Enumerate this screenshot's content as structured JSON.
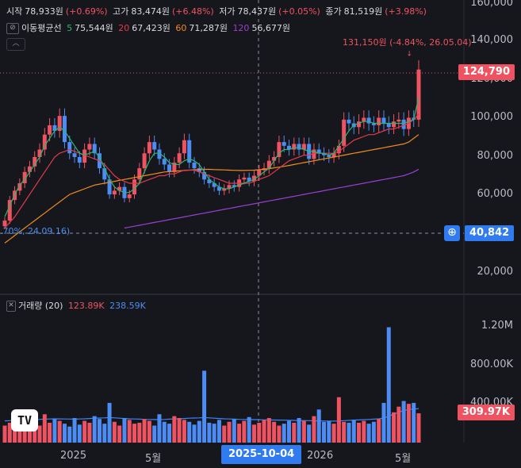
{
  "header": {
    "open_label": "시작",
    "open_value": "78,933원",
    "open_change": "(+0.69%)",
    "high_label": "고가",
    "high_value": "83,474원",
    "high_change": "(+6.48%)",
    "low_label": "저가",
    "low_value": "78,437원",
    "low_change": "(+0.05%)",
    "close_label": "종가",
    "close_value": "81,519원",
    "close_change": "(+3.98%)"
  },
  "ma_legend": {
    "label": "이동평균선",
    "items": [
      {
        "period": "5",
        "value": "75,544원",
        "color": "#2bb673"
      },
      {
        "period": "20",
        "value": "67,423원",
        "color": "#e23b4a"
      },
      {
        "period": "60",
        "value": "71,287원",
        "color": "#f08c1e"
      },
      {
        "period": "120",
        "value": "56,677원",
        "color": "#9b3fd0"
      }
    ]
  },
  "volume_legend": {
    "label": "거래량 (20)",
    "val1": "123.89K",
    "val2": "238.59K"
  },
  "annotations": {
    "high_marker": "131,150원 (-4.84%, 26.05.04)",
    "low_marker": ".70%, 24.09.16)"
  },
  "price_tags": {
    "current": "124,790",
    "crosshair": "40,842",
    "volume": "309.97K",
    "date": "2025-10-04"
  },
  "colors": {
    "up": "#ef5361",
    "down": "#4c8cf5",
    "ma5": "#2bb673",
    "ma20": "#e23b4a",
    "ma60": "#f08c1e",
    "ma120": "#9b3fd0",
    "volume_ma": "#3a86ff",
    "background": "#16171c"
  },
  "chart_data": {
    "type": "candlestick",
    "price_axis_ticks": [
      "160,000",
      "140,000",
      "120,000",
      "100,000",
      "80,000",
      "60,000",
      "40,000",
      "20,000"
    ],
    "price_range": [
      5000,
      162000
    ],
    "volume_axis_ticks": [
      "1.20M",
      "800.00K",
      "400.00K"
    ],
    "volume_range": [
      0,
      1560000
    ],
    "x_ticks": [
      "2025",
      "5월",
      "2026",
      "5월"
    ],
    "weekly_close": [
      44000,
      55000,
      60000,
      64000,
      70000,
      73000,
      78000,
      82000,
      90000,
      95000,
      92000,
      100000,
      86000,
      80000,
      78000,
      75000,
      82000,
      85000,
      80000,
      72000,
      66000,
      58000,
      60000,
      62000,
      56000,
      58000,
      66000,
      72000,
      80000,
      86000,
      82000,
      77000,
      74000,
      70000,
      75000,
      80000,
      87000,
      75000,
      72000,
      70000,
      66000,
      64000,
      62000,
      60000,
      61000,
      63000,
      62000,
      66000,
      67000,
      65000,
      68000,
      71000,
      72000,
      76000,
      78000,
      86000,
      84000,
      82000,
      85000,
      82000,
      85000,
      77000,
      82000,
      80000,
      79000,
      78000,
      80000,
      84000,
      98000,
      96000,
      94000,
      97000,
      99000,
      96000,
      95000,
      99000,
      96000,
      94000,
      97000,
      98000,
      93000,
      99000,
      98000,
      124790
    ],
    "ma5": [
      46000,
      52000,
      58000,
      63000,
      66000,
      70000,
      74000,
      78000,
      84000,
      88000,
      92000,
      94000,
      92000,
      88000,
      84000,
      80000,
      79000,
      80000,
      81000,
      78000,
      72000,
      66000,
      62000,
      60000,
      59000,
      59000,
      61000,
      64000,
      70000,
      76000,
      80000,
      80000,
      78000,
      75000,
      74000,
      74000,
      76000,
      77000,
      76000,
      74000,
      70000,
      66000,
      64000,
      62000,
      61000,
      61000,
      62000,
      63000,
      64000,
      65000,
      66000,
      68000,
      70000,
      72000,
      76000,
      80000,
      82000,
      82000,
      83000,
      83000,
      82000,
      81000,
      81000,
      80000,
      80000,
      79000,
      80000,
      84000,
      88000,
      92000,
      95000,
      96000,
      97000,
      97000,
      96000,
      96000,
      96000,
      96000,
      96000,
      96000,
      96000,
      97000,
      98000,
      110000
    ],
    "ma20": [
      40000,
      43000,
      46000,
      50000,
      54000,
      58000,
      62000,
      66000,
      70000,
      74000,
      78000,
      80000,
      81000,
      82000,
      81000,
      80000,
      79000,
      78000,
      77000,
      76000,
      74000,
      71000,
      68000,
      66000,
      65000,
      64000,
      64000,
      64000,
      65000,
      66000,
      67000,
      68000,
      68000,
      69000,
      69000,
      70000,
      71000,
      71000,
      71000,
      70000,
      69000,
      68000,
      67000,
      66000,
      65000,
      64000,
      64000,
      64000,
      64000,
      64000,
      65000,
      66000,
      67000,
      68000,
      70000,
      72000,
      74000,
      76000,
      77000,
      78000,
      79000,
      79000,
      80000,
      80000,
      80000,
      80000,
      80000,
      81000,
      83000,
      85000,
      87000,
      88000,
      89000,
      90000,
      90000,
      91000,
      92000,
      93000,
      93000,
      94000,
      95000,
      96000,
      98000,
      101000
    ],
    "ma60": [
      32000,
      34000,
      36000,
      38000,
      40000,
      42000,
      44000,
      46000,
      48000,
      50000,
      52000,
      54000,
      56000,
      58000,
      59000,
      60000,
      61000,
      62000,
      63000,
      63500,
      64000,
      64500,
      65000,
      65500,
      66000,
      66500,
      67000,
      67500,
      68000,
      68500,
      69000,
      69500,
      70000,
      70200,
      70400,
      70600,
      70800,
      71000,
      71200,
      71300,
      71400,
      71400,
      71300,
      71200,
      71100,
      71000,
      70900,
      70800,
      70800,
      70900,
      71000,
      71200,
      71500,
      71800,
      72200,
      72600,
      73000,
      73500,
      74000,
      74500,
      75000,
      75500,
      76000,
      76500,
      77000,
      77500,
      78000,
      78500,
      79000,
      79500,
      80000,
      80500,
      81000,
      81500,
      82000,
      82500,
      83000,
      83500,
      84000,
      84500,
      85000,
      86000,
      88000,
      90000
    ],
    "ma120": [
      null,
      null,
      null,
      null,
      null,
      null,
      null,
      null,
      null,
      null,
      null,
      null,
      null,
      null,
      null,
      null,
      null,
      null,
      null,
      null,
      null,
      null,
      null,
      null,
      40000,
      40500,
      41000,
      41500,
      42000,
      42500,
      43000,
      43500,
      44000,
      44500,
      45000,
      45500,
      46000,
      46500,
      47000,
      47500,
      48000,
      48500,
      49000,
      49500,
      50000,
      50500,
      51000,
      51500,
      52000,
      52500,
      53000,
      53500,
      54000,
      54500,
      55000,
      55500,
      56000,
      56500,
      57000,
      57500,
      58000,
      58500,
      59000,
      59500,
      60000,
      60500,
      61000,
      61500,
      62000,
      62500,
      63000,
      63500,
      64000,
      64500,
      65000,
      65500,
      66000,
      66500,
      67000,
      67500,
      68000,
      69000,
      70000,
      71500
    ],
    "weekly_volume": [
      180000,
      210000,
      160000,
      240000,
      190000,
      220000,
      260000,
      180000,
      300000,
      210000,
      250000,
      230000,
      200000,
      170000,
      260000,
      190000,
      230000,
      210000,
      280000,
      250000,
      200000,
      420000,
      220000,
      180000,
      260000,
      240000,
      200000,
      210000,
      250000,
      230000,
      180000,
      300000,
      220000,
      200000,
      280000,
      260000,
      240000,
      220000,
      190000,
      230000,
      760000,
      210000,
      200000,
      240000,
      180000,
      220000,
      250000,
      200000,
      230000,
      270000,
      190000,
      210000,
      240000,
      260000,
      220000,
      180000,
      200000,
      230000,
      210000,
      260000,
      230000,
      190000,
      280000,
      350000,
      220000,
      230000,
      200000,
      480000,
      220000,
      210000,
      240000,
      210000,
      230000,
      200000,
      220000,
      250000,
      420000,
      1220000,
      320000,
      380000,
      440000,
      410000,
      420000,
      310000
    ],
    "volume_ma": [
      230000,
      232000,
      235000,
      238000,
      240000,
      242000,
      245000,
      246000,
      248000,
      250000,
      252000,
      251000,
      250000,
      249000,
      248000,
      250000,
      252000,
      255000,
      258000,
      260000,
      262000,
      265000,
      262000,
      258000,
      255000,
      252000,
      250000,
      248000,
      246000,
      245000,
      244000,
      243000,
      245000,
      248000,
      250000,
      252000,
      255000,
      258000,
      260000,
      262000,
      265000,
      262000,
      258000,
      255000,
      252000,
      250000,
      248000,
      246000,
      245000,
      244000,
      243000,
      242000,
      241000,
      240000,
      239000,
      238000,
      237000,
      236000,
      235000,
      234000,
      233000,
      232000,
      231000,
      230000,
      229000,
      228000,
      227000,
      229000,
      232000,
      235000,
      238000,
      240000,
      242000,
      245000,
      248000,
      252000,
      260000,
      280000,
      300000,
      320000,
      340000,
      350000,
      355000,
      360000
    ]
  }
}
